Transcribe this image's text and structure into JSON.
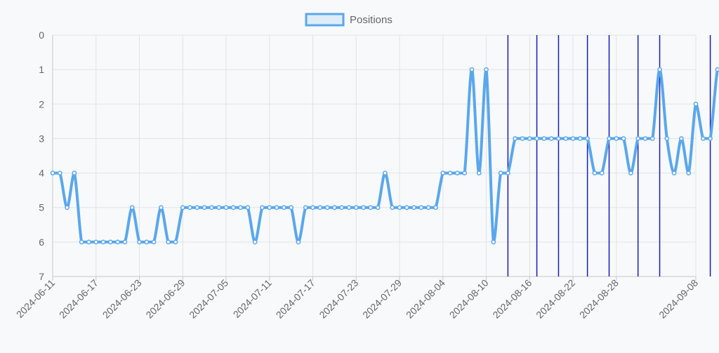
{
  "chart_data": {
    "type": "line",
    "legend": {
      "label": "Positions",
      "placement": "top-center"
    },
    "x_axis": {
      "type": "date",
      "tick_labels": [
        "2024-06-11",
        "2024-06-17",
        "2024-06-23",
        "2024-06-29",
        "2024-07-05",
        "2024-07-11",
        "2024-07-17",
        "2024-07-23",
        "2024-07-29",
        "2024-08-04",
        "2024-08-10",
        "2024-08-16",
        "2024-08-22",
        "2024-08-28",
        "2024-09-08"
      ],
      "range": [
        "2024-06-11",
        "2024-09-08"
      ]
    },
    "y_axis": {
      "reversed": true,
      "range": [
        0,
        7
      ],
      "tick_labels": [
        "0",
        "1",
        "2",
        "3",
        "4",
        "5",
        "6",
        "7"
      ]
    },
    "grid": true,
    "colors": {
      "line": "#5aa7ec",
      "marker_lines": "#1c1cb4",
      "grid": "#e3e3e3",
      "axis": "#c8c8c8"
    },
    "series": [
      {
        "name": "Positions",
        "points": [
          [
            "2024-06-11",
            4
          ],
          [
            "2024-06-12",
            4
          ],
          [
            "2024-06-13",
            5
          ],
          [
            "2024-06-14",
            4
          ],
          [
            "2024-06-15",
            6
          ],
          [
            "2024-06-16",
            6
          ],
          [
            "2024-06-17",
            6
          ],
          [
            "2024-06-18",
            6
          ],
          [
            "2024-06-19",
            6
          ],
          [
            "2024-06-20",
            6
          ],
          [
            "2024-06-21",
            6
          ],
          [
            "2024-06-22",
            5
          ],
          [
            "2024-06-23",
            6
          ],
          [
            "2024-06-24",
            6
          ],
          [
            "2024-06-25",
            6
          ],
          [
            "2024-06-26",
            5
          ],
          [
            "2024-06-27",
            6
          ],
          [
            "2024-06-28",
            6
          ],
          [
            "2024-06-29",
            5
          ],
          [
            "2024-06-30",
            5
          ],
          [
            "2024-07-01",
            5
          ],
          [
            "2024-07-02",
            5
          ],
          [
            "2024-07-03",
            5
          ],
          [
            "2024-07-04",
            5
          ],
          [
            "2024-07-05",
            5
          ],
          [
            "2024-07-06",
            5
          ],
          [
            "2024-07-07",
            5
          ],
          [
            "2024-07-08",
            5
          ],
          [
            "2024-07-09",
            6
          ],
          [
            "2024-07-10",
            5
          ],
          [
            "2024-07-11",
            5
          ],
          [
            "2024-07-12",
            5
          ],
          [
            "2024-07-13",
            5
          ],
          [
            "2024-07-14",
            5
          ],
          [
            "2024-07-15",
            6
          ],
          [
            "2024-07-16",
            5
          ],
          [
            "2024-07-17",
            5
          ],
          [
            "2024-07-18",
            5
          ],
          [
            "2024-07-19",
            5
          ],
          [
            "2024-07-20",
            5
          ],
          [
            "2024-07-21",
            5
          ],
          [
            "2024-07-22",
            5
          ],
          [
            "2024-07-23",
            5
          ],
          [
            "2024-07-24",
            5
          ],
          [
            "2024-07-25",
            5
          ],
          [
            "2024-07-26",
            5
          ],
          [
            "2024-07-27",
            4
          ],
          [
            "2024-07-28",
            5
          ],
          [
            "2024-07-29",
            5
          ],
          [
            "2024-07-30",
            5
          ],
          [
            "2024-07-31",
            5
          ],
          [
            "2024-08-01",
            5
          ],
          [
            "2024-08-02",
            5
          ],
          [
            "2024-08-03",
            5
          ],
          [
            "2024-08-04",
            4
          ],
          [
            "2024-08-05",
            4
          ],
          [
            "2024-08-06",
            4
          ],
          [
            "2024-08-07",
            4
          ],
          [
            "2024-08-08",
            1
          ],
          [
            "2024-08-09",
            4
          ],
          [
            "2024-08-10",
            1
          ],
          [
            "2024-08-11",
            6
          ],
          [
            "2024-08-12",
            4
          ],
          [
            "2024-08-13",
            4
          ],
          [
            "2024-08-14",
            3
          ],
          [
            "2024-08-15",
            3
          ],
          [
            "2024-08-16",
            3
          ],
          [
            "2024-08-17",
            3
          ],
          [
            "2024-08-18",
            3
          ],
          [
            "2024-08-19",
            3
          ],
          [
            "2024-08-20",
            3
          ],
          [
            "2024-08-21",
            3
          ],
          [
            "2024-08-22",
            3
          ],
          [
            "2024-08-23",
            3
          ],
          [
            "2024-08-24",
            3
          ],
          [
            "2024-08-25",
            4
          ],
          [
            "2024-08-26",
            4
          ],
          [
            "2024-08-27",
            3
          ],
          [
            "2024-08-28",
            3
          ],
          [
            "2024-08-29",
            3
          ],
          [
            "2024-08-30",
            4
          ],
          [
            "2024-08-31",
            3
          ],
          [
            "2024-09-01",
            3
          ],
          [
            "2024-09-02",
            3
          ],
          [
            "2024-09-03",
            1
          ],
          [
            "2024-09-04",
            3
          ],
          [
            "2024-09-05",
            4
          ],
          [
            "2024-09-06",
            3
          ],
          [
            "2024-09-07",
            4
          ],
          [
            "2024-09-08",
            2
          ],
          [
            "2024-09-09",
            3
          ],
          [
            "2024-09-10",
            3
          ],
          [
            "2024-09-11",
            1
          ],
          [
            "2024-09-12",
            1
          ]
        ]
      }
    ],
    "vertical_marker_dates": [
      "2024-08-13",
      "2024-08-17",
      "2024-08-20",
      "2024-08-24",
      "2024-08-27",
      "2024-08-31",
      "2024-09-03",
      "2024-09-10"
    ]
  }
}
